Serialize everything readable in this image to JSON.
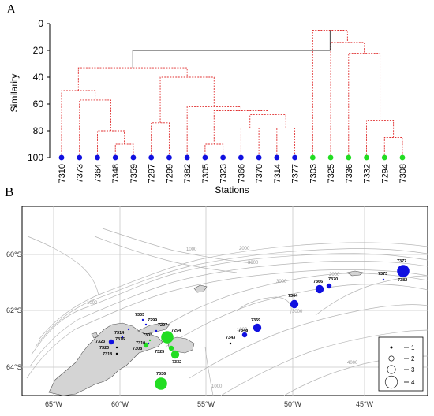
{
  "panelA": {
    "label": "A",
    "y_axis_label": "Similarity",
    "x_axis_label": "Stations",
    "y_ticks": [
      "0",
      "20",
      "40",
      "60",
      "80",
      "100"
    ],
    "stations": [
      {
        "id": "7310",
        "color": "#1010e0"
      },
      {
        "id": "7373",
        "color": "#1010e0"
      },
      {
        "id": "7364",
        "color": "#1010e0"
      },
      {
        "id": "7348",
        "color": "#1010e0"
      },
      {
        "id": "7359",
        "color": "#1010e0"
      },
      {
        "id": "7297",
        "color": "#1010e0"
      },
      {
        "id": "7299",
        "color": "#1010e0"
      },
      {
        "id": "7382",
        "color": "#1010e0"
      },
      {
        "id": "7305",
        "color": "#1010e0"
      },
      {
        "id": "7323",
        "color": "#1010e0"
      },
      {
        "id": "7366",
        "color": "#1010e0"
      },
      {
        "id": "7370",
        "color": "#1010e0"
      },
      {
        "id": "7314",
        "color": "#1010e0"
      },
      {
        "id": "7377",
        "color": "#1010e0"
      },
      {
        "id": "7303",
        "color": "#22dd22"
      },
      {
        "id": "7325",
        "color": "#22dd22"
      },
      {
        "id": "7336",
        "color": "#22dd22"
      },
      {
        "id": "7332",
        "color": "#22dd22"
      },
      {
        "id": "7294",
        "color": "#22dd22"
      },
      {
        "id": "7308",
        "color": "#22dd22"
      }
    ],
    "colors": {
      "significant_branch": "#e03030",
      "nonsignificant_branch": "#333333"
    }
  },
  "panelB": {
    "label": "B",
    "lat_labels": [
      "60°S",
      "62°S",
      "64°S"
    ],
    "lon_labels": [
      "65°W",
      "60°W",
      "55°W",
      "50°W",
      "45°W"
    ],
    "contour_labels": [
      "1000",
      "2000",
      "3000",
      "3000",
      "2000",
      "3000",
      "4000",
      "1000",
      "1000",
      "1000"
    ],
    "stations": [
      {
        "id": "7377",
        "color": "#1010e0",
        "size": 4
      },
      {
        "id": "7382",
        "color": "#1010e0",
        "size": 1
      },
      {
        "id": "7373",
        "color": "#1010e0",
        "size": 1
      },
      {
        "id": "7366",
        "color": "#1010e0",
        "size": 3
      },
      {
        "id": "7370",
        "color": "#1010e0",
        "size": 2
      },
      {
        "id": "7364",
        "color": "#1010e0",
        "size": 3
      },
      {
        "id": "7359",
        "color": "#1010e0",
        "size": 3
      },
      {
        "id": "7348",
        "color": "#1010e0",
        "size": 2
      },
      {
        "id": "7343",
        "color": "#000000",
        "size": 1
      },
      {
        "id": "7305",
        "color": "#1010e0",
        "size": 1
      },
      {
        "id": "7299",
        "color": "#1010e0",
        "size": 1
      },
      {
        "id": "7297",
        "color": "#1010e0",
        "size": 1
      },
      {
        "id": "7294",
        "color": "#22dd22",
        "size": 4
      },
      {
        "id": "7314",
        "color": "#1010e0",
        "size": 1
      },
      {
        "id": "7303",
        "color": "#22dd22",
        "size": 1
      },
      {
        "id": "7316",
        "color": "#1010e0",
        "size": 1
      },
      {
        "id": "7310",
        "color": "#1010e0",
        "size": 1
      },
      {
        "id": "7308",
        "color": "#22dd22",
        "size": 2
      },
      {
        "id": "7325",
        "color": "#22dd22",
        "size": 2
      },
      {
        "id": "7323",
        "color": "#1010e0",
        "size": 2
      },
      {
        "id": "7320",
        "color": "#000000",
        "size": 1
      },
      {
        "id": "7318",
        "color": "#000000",
        "size": 1
      },
      {
        "id": "7332",
        "color": "#22dd22",
        "size": 3
      },
      {
        "id": "7336",
        "color": "#22dd22",
        "size": 4
      }
    ],
    "legend": [
      {
        "label": "1",
        "size": 1
      },
      {
        "label": "2",
        "size": 2
      },
      {
        "label": "3",
        "size": 3
      },
      {
        "label": "4",
        "size": 4
      }
    ]
  }
}
